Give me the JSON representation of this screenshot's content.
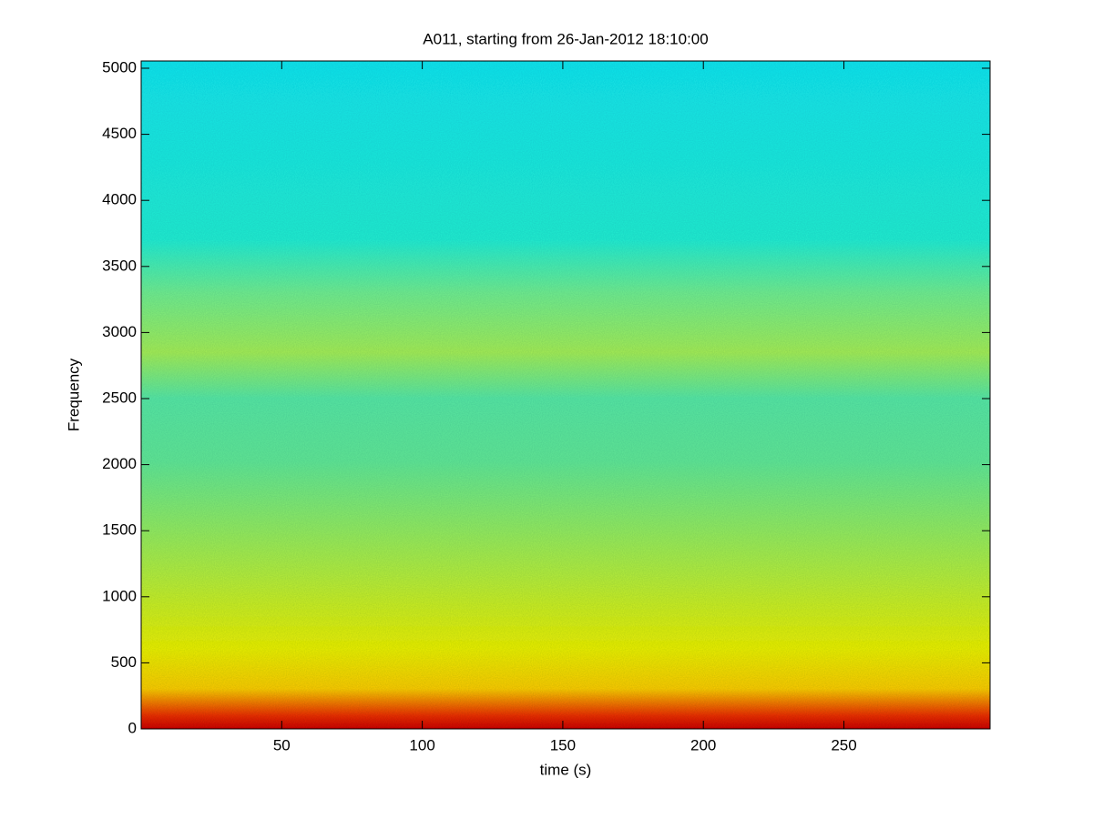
{
  "chart_data": {
    "type": "spectrogram",
    "title": "A011, starting from 26-Jan-2012 18:10:00",
    "x_label": "time (s)",
    "y_label": "Frequency",
    "xlim": [
      0,
      302
    ],
    "xticks": [
      50,
      100,
      150,
      200,
      250
    ],
    "ylim": [
      0,
      5055
    ],
    "yticks": [
      0,
      500,
      1000,
      1500,
      2000,
      2500,
      3000,
      3500,
      4000,
      4500,
      5000
    ],
    "colormap": "jet"
  }
}
